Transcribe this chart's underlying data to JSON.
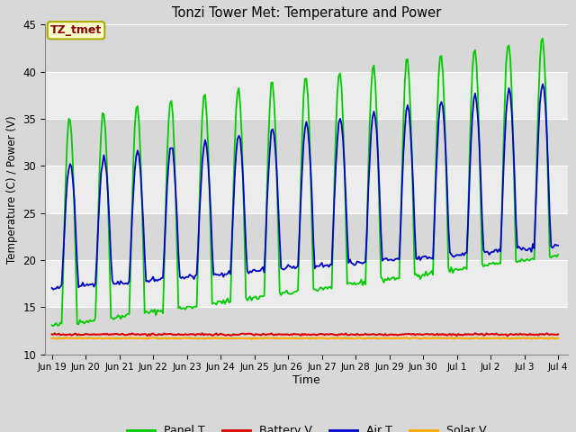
{
  "title": "Tonzi Tower Met: Temperature and Power",
  "xlabel": "Time",
  "ylabel": "Temperature (C) / Power (V)",
  "ylim": [
    10,
    45
  ],
  "yticks": [
    10,
    15,
    20,
    25,
    30,
    35,
    40,
    45
  ],
  "background_color": "#d8d8d8",
  "plot_bg_color": "#e8e8e8",
  "annotation_text": "TZ_tmet",
  "annotation_color": "#8b0000",
  "annotation_bg": "#ffffcc",
  "annotation_edge": "#aaaa00",
  "x_tick_labels": [
    "Jun 19",
    "Jun 20",
    "Jun 21",
    "Jun 22",
    "Jun 23",
    "Jun 24",
    "Jun 25",
    "Jun 26",
    "Jun 27",
    "Jun 28",
    "Jun 29",
    "Jun 30",
    "Jul 1",
    "Jul 2",
    "Jul 3",
    "Jul 4"
  ],
  "legend_labels": [
    "Panel T",
    "Battery V",
    "Air T",
    "Solar V"
  ],
  "panel_t_color": "#00cc00",
  "battery_v_color": "#dd0000",
  "air_t_color": "#0000cc",
  "solar_v_color": "#ffaa00",
  "grid_color": "#ffffff",
  "band_color_light": "#ececec",
  "band_color_dark": "#d8d8d8",
  "num_days": 16
}
